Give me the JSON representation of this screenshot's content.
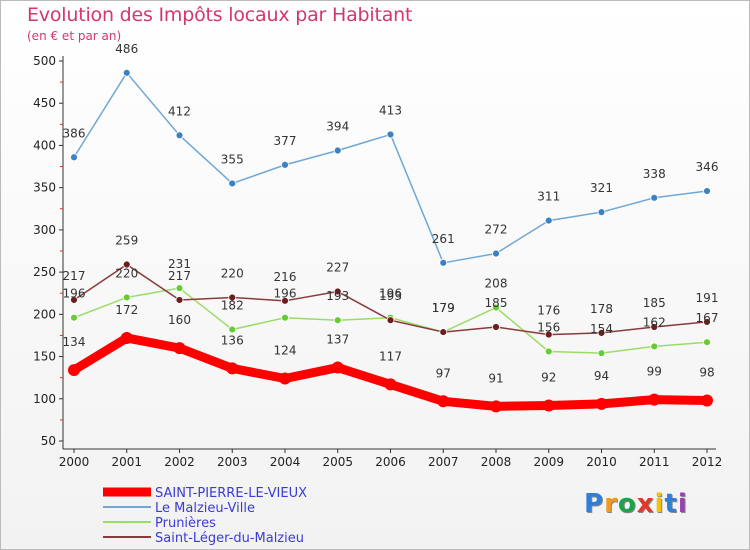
{
  "chart_data": {
    "type": "line",
    "title": "Evolution des Impôts locaux par Habitant",
    "subtitle": "(en € et par an)",
    "x": [
      "2000",
      "2001",
      "2002",
      "2003",
      "2004",
      "2005",
      "2006",
      "2007",
      "2008",
      "2009",
      "2010",
      "2011",
      "2012"
    ],
    "ylim": [
      50,
      500
    ],
    "yticks": [
      50,
      100,
      150,
      200,
      250,
      300,
      350,
      400,
      450,
      500
    ],
    "grid": false,
    "legend_position": "bottom-left",
    "series": [
      {
        "name": "SAINT-PIERRE-LE-VIEUX",
        "color": "#ff0000",
        "point_color": "#ff0000",
        "emphasis": true,
        "values": [
          134,
          172,
          160,
          136,
          124,
          137,
          117,
          97,
          91,
          92,
          94,
          99,
          98
        ]
      },
      {
        "name": "Le Malzieu-Ville",
        "color": "#6fa8d6",
        "point_color": "#3b82c4",
        "emphasis": false,
        "values": [
          386,
          486,
          412,
          355,
          377,
          394,
          413,
          261,
          272,
          311,
          321,
          338,
          346
        ]
      },
      {
        "name": "Prunières",
        "color": "#99dd66",
        "point_color": "#66cc33",
        "emphasis": false,
        "values": [
          196,
          220,
          231,
          182,
          196,
          193,
          196,
          179,
          208,
          156,
          154,
          162,
          167
        ]
      },
      {
        "name": "Saint-Léger-du-Malzieu",
        "color": "#8a3a3a",
        "point_color": "#6b1e1e",
        "emphasis": false,
        "values": [
          217,
          259,
          217,
          220,
          216,
          227,
          193,
          179,
          185,
          176,
          178,
          185,
          191
        ]
      }
    ]
  },
  "logo": {
    "text": "Proxiti",
    "letters": [
      "P",
      "r",
      "o",
      "x",
      "i",
      "t",
      "i"
    ],
    "colors": [
      "#2f7fd6",
      "#f29a1c",
      "#1aa54a",
      "#e8352a",
      "#f2c10c",
      "#2f7fd6",
      "#9b3fb5"
    ]
  }
}
